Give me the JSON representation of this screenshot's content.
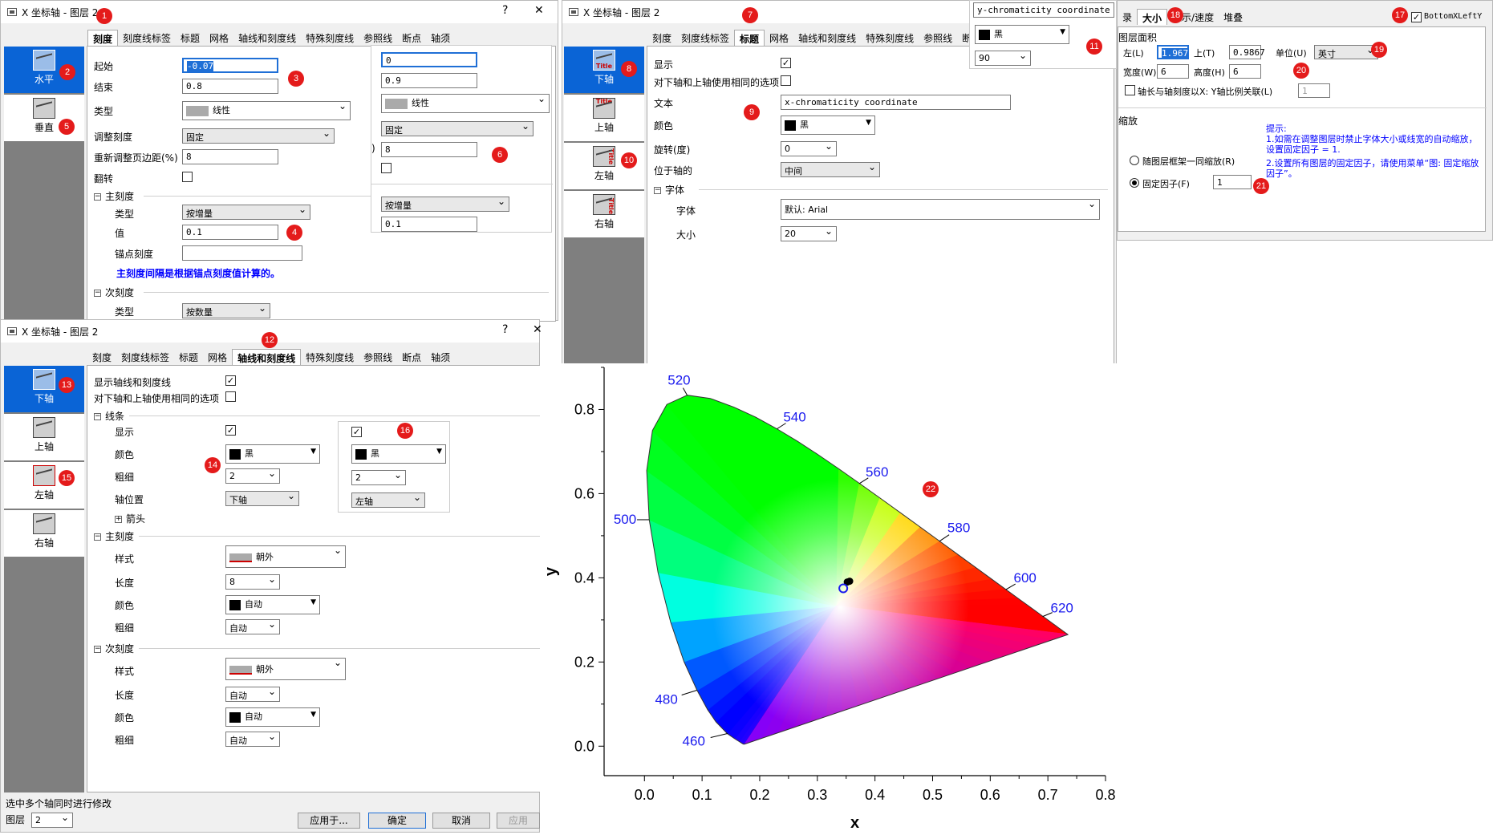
{
  "dialog_top_left": {
    "title": "X 坐标轴 - 图层 2",
    "help": "?",
    "close": "✕",
    "tabs": [
      "刻度",
      "刻度线标签",
      "标题",
      "网格",
      "轴线和刻度线",
      "特殊刻度线",
      "参照线",
      "断点",
      "轴须"
    ],
    "nav": [
      "水平",
      "垂直"
    ],
    "start_label": "起始",
    "start_value": "-0.07",
    "end_label": "结束",
    "end_value": "0.8",
    "type_label": "类型",
    "type_value": "线性",
    "rescale_label": "调整刻度",
    "rescale_value": "固定",
    "margin_label": "重新调整页边距(%)",
    "margin_value": "8",
    "flip_label": "翻转",
    "major_label": "主刻度",
    "major_type_label": "类型",
    "major_type_value": "按增量",
    "major_value_label": "值",
    "major_value": "0.1",
    "anchor_label": "锚点刻度",
    "note": "主刻度间隔是根据锚点刻度值计算的。",
    "minor_label": "次刻度",
    "minor_type_label": "类型",
    "minor_type_value": "按数量"
  },
  "popup_scale": {
    "start": "0",
    "end": "0.9",
    "type": "线性",
    "rescale": "固定",
    "margin": "8",
    "paren": ")",
    "major_type": "按增量",
    "major_value": "0.1"
  },
  "dialog_top_mid": {
    "title": "X 坐标轴 - 图层 2",
    "tabs": [
      "刻度",
      "刻度线标签",
      "标题",
      "网格",
      "轴线和刻度线",
      "特殊刻度线",
      "参照线",
      "断"
    ],
    "nav": [
      "下轴",
      "上轴",
      "左轴",
      "右轴"
    ],
    "title_icon": "Title",
    "show_label": "显示",
    "same_opt_label": "对下轴和上轴使用相同的选项",
    "text_label": "文本",
    "text_value": "x-chromaticity coordinate",
    "color_label": "颜色",
    "color_value": "黑",
    "rotate_label": "旋转(度)",
    "rotate_value": "0",
    "pos_label": "位于轴的",
    "pos_value": "中间",
    "font_section": "字体",
    "font_label": "字体",
    "font_value": "默认: Arial",
    "size_label": "大小",
    "size_value": "20"
  },
  "popup_title": {
    "text": "y-chromaticity coordinate",
    "color": "黑",
    "rotate": "90"
  },
  "dialog_right": {
    "tabs": [
      "录",
      "大小",
      "显示/速度",
      "堆叠"
    ],
    "bottom_x_left_y": "BottomXLeftY",
    "area_label": "图层面积",
    "left_label": "左(L)",
    "left_value": "1.967",
    "top_label": "上(T)",
    "top_value": "0.9867",
    "unit_label": "单位(U)",
    "unit_value": "英寸",
    "width_label": "宽度(W)",
    "width_value": "6",
    "height_label": "高度(H)",
    "height_value": "6",
    "link_label": "轴长与轴刻度以X: Y轴比例关联(L)",
    "link_value": "1",
    "scale_label": "缩放",
    "radio1": "随图层框架一同缩放(R)",
    "radio2": "固定因子(F)",
    "factor_value": "1",
    "hint_title": "提示:",
    "hint1": "1.如需在调整图层时禁止字体大小或线宽的自动缩放，设置固定因子 = 1.",
    "hint2": "2.设置所有图层的固定因子，请使用菜单“图: 固定缩放因子”。"
  },
  "dialog_bottom": {
    "title": "X 坐标轴 - 图层 2",
    "help": "?",
    "close": "✕",
    "tabs": [
      "刻度",
      "刻度线标签",
      "标题",
      "网格",
      "轴线和刻度线",
      "特殊刻度线",
      "参照线",
      "断点",
      "轴须"
    ],
    "nav": [
      "下轴",
      "上轴",
      "左轴",
      "右轴"
    ],
    "show_axis_label": "显示轴线和刻度线",
    "same_opt_label": "对下轴和上轴使用相同的选项",
    "line_section": "线条",
    "show_label": "显示",
    "color_label": "颜色",
    "color_value": "黑",
    "thick_label": "粗细",
    "thick_value": "2",
    "axispos_label": "轴位置",
    "axispos_value": "下轴",
    "arrow_label": "箭头",
    "major_section": "主刻度",
    "style_label": "样式",
    "style_value": "朝外",
    "length_label": "长度",
    "length_value": "8",
    "mcolor_label": "颜色",
    "mcolor_value": "自动",
    "mthick_label": "粗细",
    "mthick_value": "自动",
    "minor_section": "次刻度",
    "nstyle_label": "样式",
    "nstyle_value": "朝外",
    "nlength_label": "长度",
    "nlength_value": "自动",
    "ncolor_label": "颜色",
    "ncolor_value": "自动",
    "nthick_label": "粗细",
    "nthick_value": "自动",
    "multi_note": "选中多个轴同时进行修改",
    "layer_label": "图层",
    "layer_value": "2",
    "apply_to": "应用于...",
    "ok": "确定",
    "cancel": "取消",
    "apply": "应用"
  },
  "popup_line": {
    "color": "黑",
    "thick": "2",
    "pos": "左轴"
  },
  "badges": [
    "1",
    "2",
    "3",
    "4",
    "5",
    "6",
    "7",
    "8",
    "9",
    "10",
    "11",
    "12",
    "13",
    "14",
    "15",
    "16",
    "17",
    "18",
    "19",
    "20",
    "21",
    "22"
  ],
  "chart_data": {
    "type": "scatter",
    "xlabel": "x",
    "ylabel": "y",
    "xlim": [
      -0.07,
      0.8
    ],
    "ylim": [
      -0.07,
      0.9
    ],
    "x_ticks": [
      "0.0",
      "0.1",
      "0.2",
      "0.3",
      "0.4",
      "0.5",
      "0.6",
      "0.7",
      "0.8"
    ],
    "y_ticks": [
      "0.0",
      "0.2",
      "0.4",
      "0.6",
      "0.8"
    ],
    "wavelength_labels": [
      {
        "label": "520",
        "x": 0.074,
        "y": 0.834
      },
      {
        "label": "540",
        "x": 0.23,
        "y": 0.754
      },
      {
        "label": "560",
        "x": 0.373,
        "y": 0.624
      },
      {
        "label": "580",
        "x": 0.512,
        "y": 0.487
      },
      {
        "label": "600",
        "x": 0.627,
        "y": 0.372
      },
      {
        "label": "620",
        "x": 0.691,
        "y": 0.308
      },
      {
        "label": "500",
        "x": 0.008,
        "y": 0.538
      },
      {
        "label": "480",
        "x": 0.091,
        "y": 0.133
      },
      {
        "label": "460",
        "x": 0.144,
        "y": 0.03
      }
    ],
    "label_color": "#1a1aee",
    "points": [
      {
        "x": 0.352,
        "y": 0.39,
        "filled": true
      },
      {
        "x": 0.356,
        "y": 0.392,
        "filled": true
      },
      {
        "x": 0.345,
        "y": 0.375,
        "filled": false
      }
    ]
  }
}
